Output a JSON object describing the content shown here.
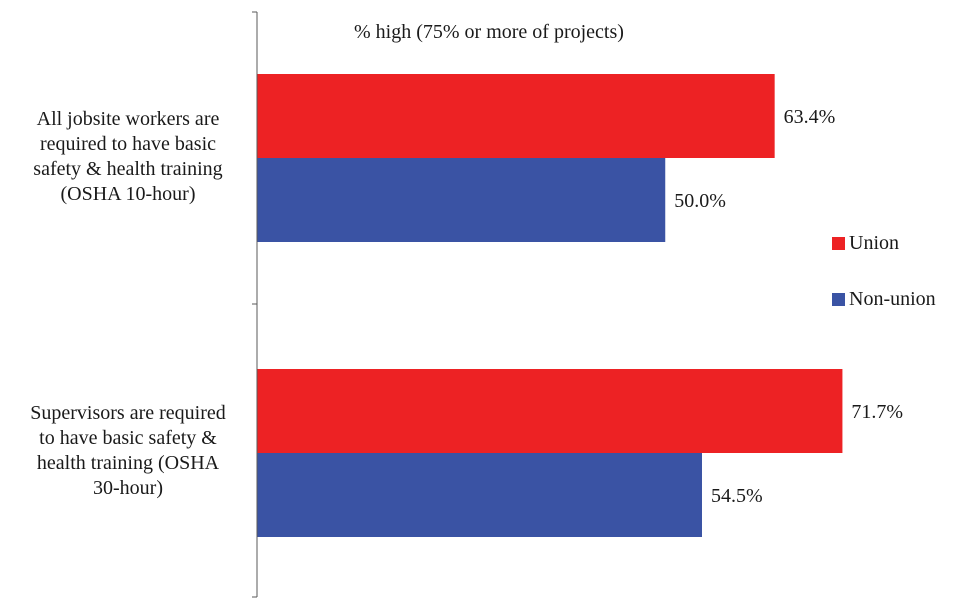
{
  "chart_data": {
    "type": "bar",
    "orientation": "horizontal",
    "subtitle": "% high (75% or more of projects)",
    "categories": [
      "All jobsite workers are\nrequired to have basic\nsafety & health training\n(OSHA 10-hour)",
      "Supervisors are required\nto have basic safety &\nhealth training (OSHA\n30-hour)"
    ],
    "series": [
      {
        "name": "Union",
        "color": "#ED2224",
        "values": [
          63.4,
          71.7
        ],
        "labels": [
          "63.4%",
          "71.7%"
        ]
      },
      {
        "name": "Non-union",
        "color": "#3A53A4",
        "values": [
          50.0,
          54.5
        ],
        "labels": [
          "50.0%",
          "54.5%"
        ]
      }
    ],
    "xlim": [
      0,
      80
    ],
    "grid": false,
    "legend_position": "right"
  }
}
